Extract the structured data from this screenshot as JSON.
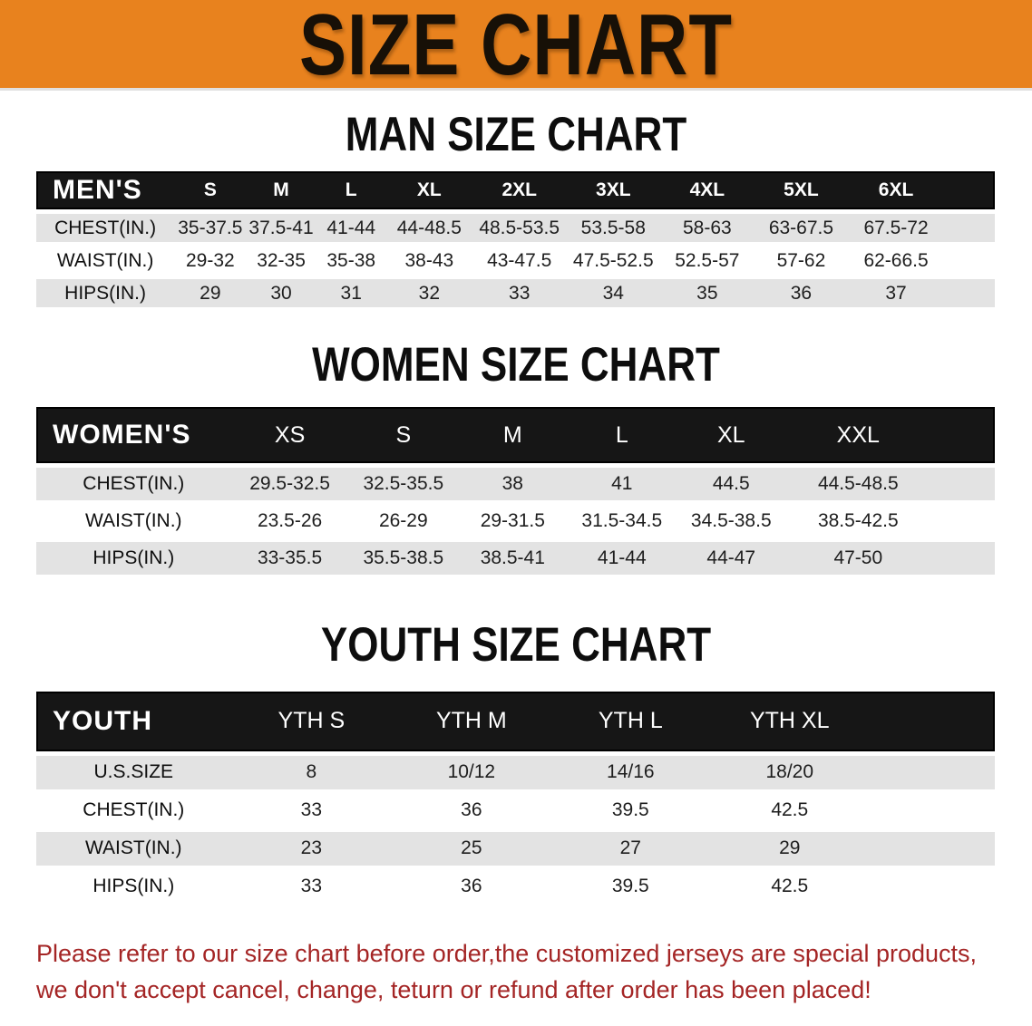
{
  "banner": {
    "title": "SIZE CHART"
  },
  "colors": {
    "banner_bg": "#E8821E",
    "banner_text": "#171007",
    "header_bg": "#161616",
    "row_gray": "#E3E3E3",
    "note_red": "#A42525"
  },
  "men_section": {
    "heading": "MAN SIZE CHART",
    "table": {
      "header_label": "MEN'S",
      "sizes": [
        "S",
        "M",
        "L",
        "XL",
        "2XL",
        "3XL",
        "4XL",
        "5XL",
        "6XL"
      ],
      "rows": [
        {
          "label": "CHEST(IN.)",
          "values": [
            "35-37.5",
            "37.5-41",
            "41-44",
            "44-48.5",
            "48.5-53.5",
            "53.5-58",
            "58-63",
            "63-67.5",
            "67.5-72"
          ]
        },
        {
          "label": "WAIST(IN.)",
          "values": [
            "29-32",
            "32-35",
            "35-38",
            "38-43",
            "43-47.5",
            "47.5-52.5",
            "52.5-57",
            "57-62",
            "62-66.5"
          ]
        },
        {
          "label": "HIPS(IN.)",
          "values": [
            "29",
            "30",
            "31",
            "32",
            "33",
            "34",
            "35",
            "36",
            "37"
          ]
        }
      ]
    }
  },
  "women_section": {
    "heading": "WOMEN SIZE CHART",
    "table": {
      "header_label": "WOMEN'S",
      "sizes": [
        "XS",
        "S",
        "M",
        "L",
        "XL",
        "XXL"
      ],
      "rows": [
        {
          "label": "CHEST(IN.)",
          "values": [
            "29.5-32.5",
            "32.5-35.5",
            "38",
            "41",
            "44.5",
            "44.5-48.5"
          ]
        },
        {
          "label": "WAIST(IN.)",
          "values": [
            "23.5-26",
            "26-29",
            "29-31.5",
            "31.5-34.5",
            "34.5-38.5",
            "38.5-42.5"
          ]
        },
        {
          "label": "HIPS(IN.)",
          "values": [
            "33-35.5",
            "35.5-38.5",
            "38.5-41",
            "41-44",
            "44-47",
            "47-50"
          ]
        }
      ]
    }
  },
  "youth_section": {
    "heading": "YOUTH SIZE CHART",
    "table": {
      "header_label": "YOUTH",
      "sizes": [
        "YTH S",
        "YTH M",
        "YTH L",
        "YTH XL"
      ],
      "rows": [
        {
          "label": "U.S.SIZE",
          "values": [
            "8",
            "10/12",
            "14/16",
            "18/20"
          ]
        },
        {
          "label": "CHEST(IN.)",
          "values": [
            "33",
            "36",
            "39.5",
            "42.5"
          ]
        },
        {
          "label": "WAIST(IN.)",
          "values": [
            "23",
            "25",
            "27",
            "29"
          ]
        },
        {
          "label": "HIPS(IN.)",
          "values": [
            "33",
            "36",
            "39.5",
            "42.5"
          ]
        }
      ]
    }
  },
  "note": {
    "line1": "Please refer to our size chart before order,the customized jerseys are special products,",
    "line2": "we don't accept cancel, change, teturn or refund after order has been placed!"
  }
}
